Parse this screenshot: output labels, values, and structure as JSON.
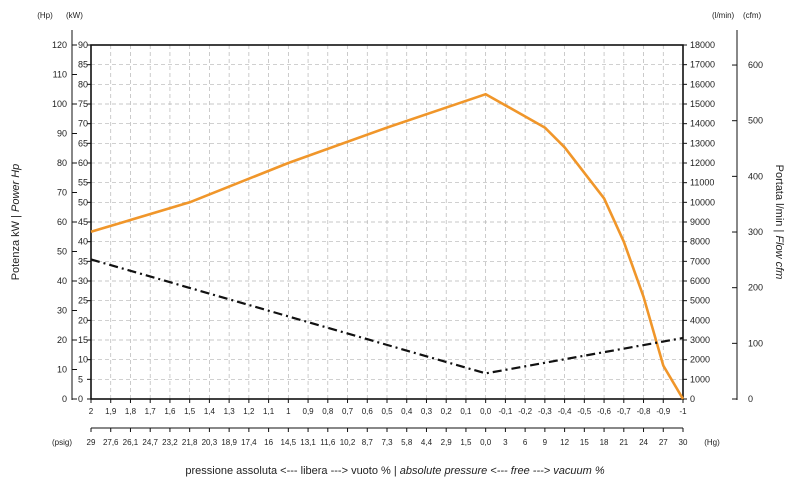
{
  "chart_data": {
    "type": "line",
    "title": "",
    "xlabel": {
      "italian": "pressione assoluta <--- libera ---> vuoto %",
      "separator": "|",
      "english": "absolute pressure <--- free ---> vacuum %"
    },
    "y_left_outer": {
      "unit": "(Hp)",
      "ticks": [
        "120",
        "110",
        "100",
        "90",
        "80",
        "70",
        "60",
        "50",
        "40",
        "30",
        "20",
        "10",
        "0"
      ],
      "range": [
        0,
        120
      ]
    },
    "y_left_inner": {
      "unit": "(kW)",
      "ticks": [
        "90",
        "85",
        "80",
        "75",
        "70",
        "65",
        "60",
        "55",
        "50",
        "45",
        "40",
        "35",
        "30",
        "25",
        "20",
        "15",
        "10",
        "5",
        "0"
      ],
      "range": [
        0,
        90
      ]
    },
    "y_left_title": {
      "text": "Potenza kW | ",
      "italic": "Power Hp"
    },
    "y_right_inner": {
      "unit": "(l/min)",
      "ticks": [
        "18000",
        "17000",
        "16000",
        "15000",
        "14000",
        "13000",
        "12000",
        "11000",
        "10000",
        "9000",
        "8000",
        "7000",
        "6000",
        "5000",
        "4000",
        "3000",
        "2000",
        "1000",
        "0"
      ],
      "range": [
        0,
        18000
      ]
    },
    "y_right_outer": {
      "unit": "(cfm)",
      "ticks": [
        "600",
        "500",
        "400",
        "300",
        "200",
        "100",
        "0"
      ],
      "range": [
        0,
        636
      ]
    },
    "y_right_title": {
      "text": "Portata l/min | ",
      "italic": "Flow cfm"
    },
    "x_bar": {
      "ticks": [
        "2",
        "1,9",
        "1,8",
        "1,7",
        "1,6",
        "1,5",
        "1,4",
        "1,3",
        "1,2",
        "1,1",
        "1",
        "0,9",
        "0,8",
        "0,7",
        "0,6",
        "0,5",
        "0,4",
        "0,3",
        "0,2",
        "0,1",
        "0,0",
        "-0,1",
        "-0,2",
        "-0,3",
        "-0,4",
        "-0,5",
        "-0,6",
        "-0,7",
        "-0,8",
        "-0,9",
        "-1"
      ]
    },
    "x_psig": {
      "unit_left": "(psig)",
      "unit_right": "(Hg)",
      "ticks": [
        "29",
        "27,6",
        "26,1",
        "24,7",
        "23,2",
        "21,8",
        "20,3",
        "18,9",
        "17,4",
        "16",
        "14,5",
        "13,1",
        "11,6",
        "10,2",
        "8,7",
        "7,3",
        "5,8",
        "4,4",
        "2,9",
        "1,5",
        "0,0",
        "3",
        "6",
        "9",
        "12",
        "15",
        "18",
        "21",
        "24",
        "27",
        "30"
      ]
    },
    "series": [
      {
        "key": "flow",
        "axis": "l/min",
        "color": "#f0962a",
        "style": "solid",
        "x": [
          2,
          1.5,
          1,
          0.5,
          0.0,
          -0.3,
          -0.4,
          -0.6,
          -0.7,
          -0.8,
          -0.9,
          -1
        ],
        "y": [
          8500,
          10000,
          12000,
          13800,
          15500,
          13800,
          12800,
          10200,
          8000,
          5200,
          1700,
          0
        ]
      },
      {
        "key": "power",
        "axis": "kW",
        "color": "#111111",
        "style": "dash-dot",
        "x": [
          2,
          0.0,
          -1
        ],
        "y": [
          35.5,
          6.5,
          15.5
        ]
      }
    ],
    "grid": true
  }
}
